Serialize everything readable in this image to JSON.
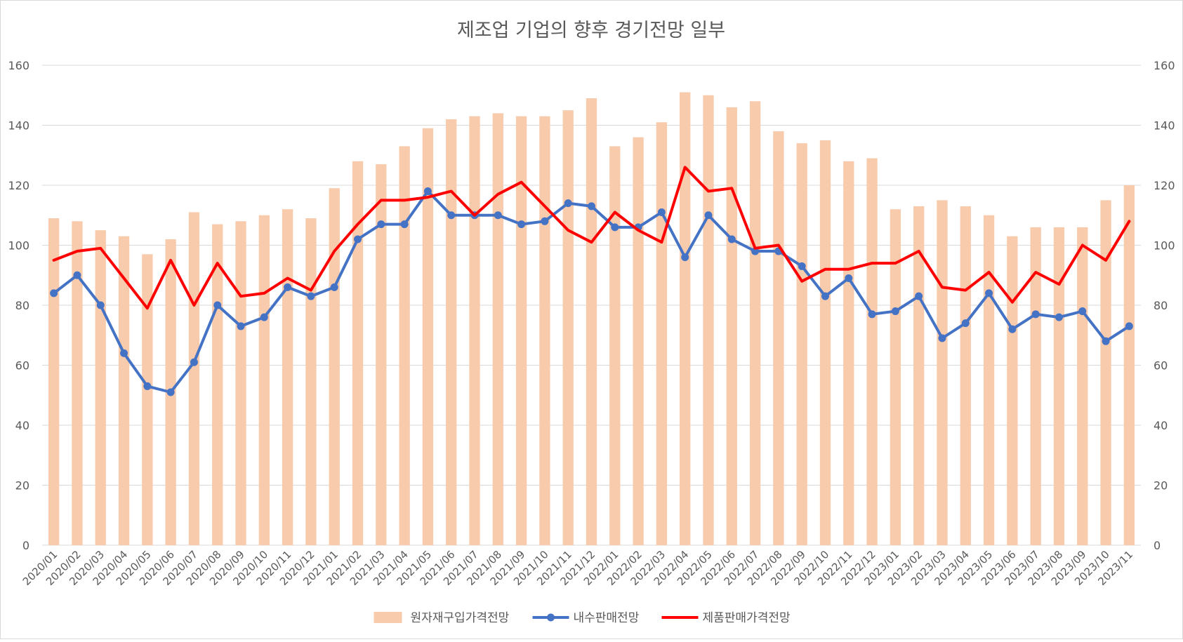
{
  "chart_data": {
    "type": "bar+line",
    "title": "제조업 기업의 향후 경기전망 일부",
    "xlabel": "",
    "ylabel": "",
    "ylim": [
      0,
      160
    ],
    "y_ticks": [
      0,
      20,
      40,
      60,
      80,
      100,
      120,
      140,
      160
    ],
    "y2lim": [
      0,
      160
    ],
    "grid": true,
    "legend_position": "bottom",
    "categories": [
      "2020/01",
      "2020/02",
      "2020/03",
      "2020/04",
      "2020/05",
      "2020/06",
      "2020/07",
      "2020/08",
      "2020/09",
      "2020/10",
      "2020/11",
      "2020/12",
      "2021/01",
      "2021/02",
      "2021/03",
      "2021/04",
      "2021/05",
      "2021/06",
      "2021/07",
      "2021/08",
      "2021/09",
      "2021/10",
      "2021/11",
      "2021/12",
      "2022/01",
      "2022/02",
      "2022/03",
      "2022/04",
      "2022/05",
      "2022/06",
      "2022/07",
      "2022/08",
      "2022/09",
      "2022/10",
      "2022/11",
      "2022/12",
      "2023/01",
      "2023/02",
      "2023/03",
      "2023/04",
      "2023/05",
      "2023/06",
      "2023/07",
      "2023/08",
      "2023/09",
      "2023/10",
      "2023/11"
    ],
    "series": [
      {
        "name": "원자재구입가격전망",
        "kind": "bar",
        "color": "#F8CBAD",
        "values": [
          109,
          108,
          105,
          103,
          97,
          102,
          111,
          107,
          108,
          110,
          112,
          109,
          119,
          128,
          127,
          133,
          139,
          142,
          143,
          144,
          143,
          143,
          145,
          149,
          133,
          136,
          141,
          151,
          150,
          146,
          148,
          138,
          134,
          135,
          128,
          129,
          112,
          113,
          115,
          113,
          110,
          103,
          106,
          106,
          106,
          115,
          120
        ]
      },
      {
        "name": "내수판매전망",
        "kind": "line",
        "marker": "circle",
        "color": "#4472C4",
        "values": [
          84,
          90,
          80,
          64,
          53,
          51,
          61,
          80,
          73,
          76,
          86,
          83,
          86,
          102,
          107,
          107,
          118,
          110,
          110,
          110,
          107,
          108,
          114,
          113,
          106,
          106,
          111,
          96,
          110,
          102,
          98,
          98,
          93,
          83,
          89,
          77,
          78,
          83,
          69,
          74,
          84,
          72,
          77,
          76,
          78,
          68,
          73
        ]
      },
      {
        "name": "제품판매가격전망",
        "kind": "line",
        "marker": "none",
        "color": "#FF0000",
        "values": [
          95,
          98,
          99,
          89,
          79,
          95,
          80,
          94,
          83,
          84,
          89,
          85,
          98,
          107,
          115,
          115,
          116,
          118,
          110,
          117,
          121,
          113,
          105,
          101,
          111,
          105,
          101,
          126,
          118,
          119,
          99,
          100,
          88,
          92,
          92,
          94,
          94,
          98,
          86,
          85,
          91,
          81,
          91,
          87,
          100,
          95,
          108
        ]
      }
    ]
  }
}
